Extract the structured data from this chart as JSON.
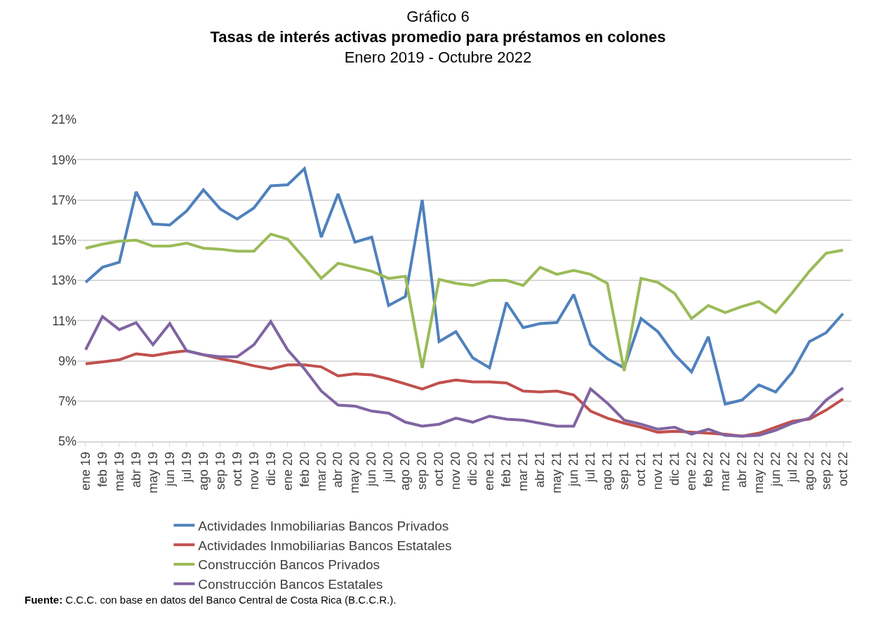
{
  "chart_data": {
    "type": "line",
    "title": "Tasas de interés activas promedio para préstamos en colones",
    "subtitle": "Enero 2019 - Octubre 2022",
    "annotations": [
      "Gráfico 6",
      "Fuente: C.C.C. con base en datos del Banco Central de Costa Rica (B.C.C.R.)."
    ],
    "categories": [
      "ene 19",
      "feb 19",
      "mar 19",
      "abr 19",
      "may 19",
      "jun 19",
      "jul 19",
      "ago 19",
      "sep 19",
      "oct 19",
      "nov 19",
      "dic 19",
      "ene 20",
      "feb 20",
      "mar 20",
      "abr 20",
      "may 20",
      "jun 20",
      "jul 20",
      "ago 20",
      "sep 20",
      "oct 20",
      "nov 20",
      "dic 20",
      "ene 21",
      "feb 21",
      "mar 21",
      "abr 21",
      "may 21",
      "jun 21",
      "jul 21",
      "ago 21",
      "sep 21",
      "oct 21",
      "nov 21",
      "dic 21",
      "ene 22",
      "feb 22",
      "mar 22",
      "abr 22",
      "may 22",
      "jun 22",
      "jul 22",
      "ago 22",
      "sep 22",
      "oct 22"
    ],
    "series": [
      {
        "name": "Actividades Inmobiliarias Bancos Privados",
        "color": "#4f81bd",
        "values": [
          12.9,
          13.65,
          13.9,
          17.4,
          15.8,
          15.75,
          16.45,
          17.5,
          16.55,
          16.05,
          16.6,
          17.7,
          17.75,
          18.55,
          15.15,
          17.3,
          14.9,
          15.15,
          11.75,
          12.2,
          17.0,
          9.95,
          10.45,
          9.15,
          8.65,
          11.9,
          10.65,
          10.85,
          10.9,
          12.3,
          9.8,
          9.1,
          8.65,
          11.1,
          10.45,
          9.3,
          8.45,
          10.2,
          6.85,
          7.05,
          7.8,
          7.45,
          8.45,
          9.95,
          10.4,
          11.35
        ]
      },
      {
        "name": "Actividades Inmobiliarias Bancos Estatales",
        "color": "#c0504d",
        "values": [
          8.85,
          8.95,
          9.05,
          9.35,
          9.25,
          9.4,
          9.5,
          9.3,
          9.1,
          8.95,
          8.75,
          8.6,
          8.8,
          8.8,
          8.7,
          8.25,
          8.35,
          8.3,
          8.1,
          7.85,
          7.6,
          7.9,
          8.05,
          7.95,
          7.95,
          7.9,
          7.5,
          7.45,
          7.5,
          7.3,
          6.5,
          6.15,
          5.9,
          5.7,
          5.45,
          5.5,
          5.45,
          5.4,
          5.35,
          5.25,
          5.4,
          5.7,
          6.0,
          6.1,
          6.55,
          7.1
        ]
      },
      {
        "name": "Construcción Bancos Privados",
        "color": "#9bbb59",
        "values": [
          14.6,
          14.8,
          14.95,
          15.0,
          14.7,
          14.7,
          14.85,
          14.6,
          14.55,
          14.45,
          14.45,
          15.3,
          15.05,
          14.1,
          13.1,
          13.85,
          13.65,
          13.45,
          13.1,
          13.2,
          8.65,
          13.05,
          12.85,
          12.75,
          13.0,
          13.0,
          12.75,
          13.65,
          13.3,
          13.5,
          13.3,
          12.85,
          8.5,
          13.1,
          12.9,
          12.35,
          11.1,
          11.75,
          11.4,
          11.7,
          11.95,
          11.4,
          12.4,
          13.45,
          14.35,
          14.5
        ]
      },
      {
        "name": "Construcción Bancos Estatales",
        "color": "#8064a2",
        "values": [
          9.55,
          11.2,
          10.55,
          10.9,
          9.8,
          10.85,
          9.5,
          9.3,
          9.2,
          9.2,
          9.8,
          10.95,
          9.55,
          8.6,
          7.5,
          6.8,
          6.75,
          6.5,
          6.4,
          5.95,
          5.75,
          5.85,
          6.15,
          5.95,
          6.25,
          6.1,
          6.05,
          5.9,
          5.75,
          5.75,
          7.6,
          6.9,
          6.05,
          5.85,
          5.6,
          5.7,
          5.35,
          5.6,
          5.3,
          5.25,
          5.3,
          5.55,
          5.9,
          6.15,
          7.05,
          7.65
        ]
      }
    ],
    "ylim": [
      5,
      21
    ],
    "yticks": [
      {
        "value": 5,
        "label": "5%"
      },
      {
        "value": 7,
        "label": "7%"
      },
      {
        "value": 9,
        "label": "9%"
      },
      {
        "value": 11,
        "label": "11%"
      },
      {
        "value": 13,
        "label": "13%"
      },
      {
        "value": 15,
        "label": "15%"
      },
      {
        "value": 17,
        "label": "17%"
      },
      {
        "value": 19,
        "label": "19%"
      },
      {
        "value": 21,
        "label": "21%"
      }
    ],
    "grid": "y",
    "legend": "bottom",
    "marker": "none",
    "line_style": "solid"
  }
}
